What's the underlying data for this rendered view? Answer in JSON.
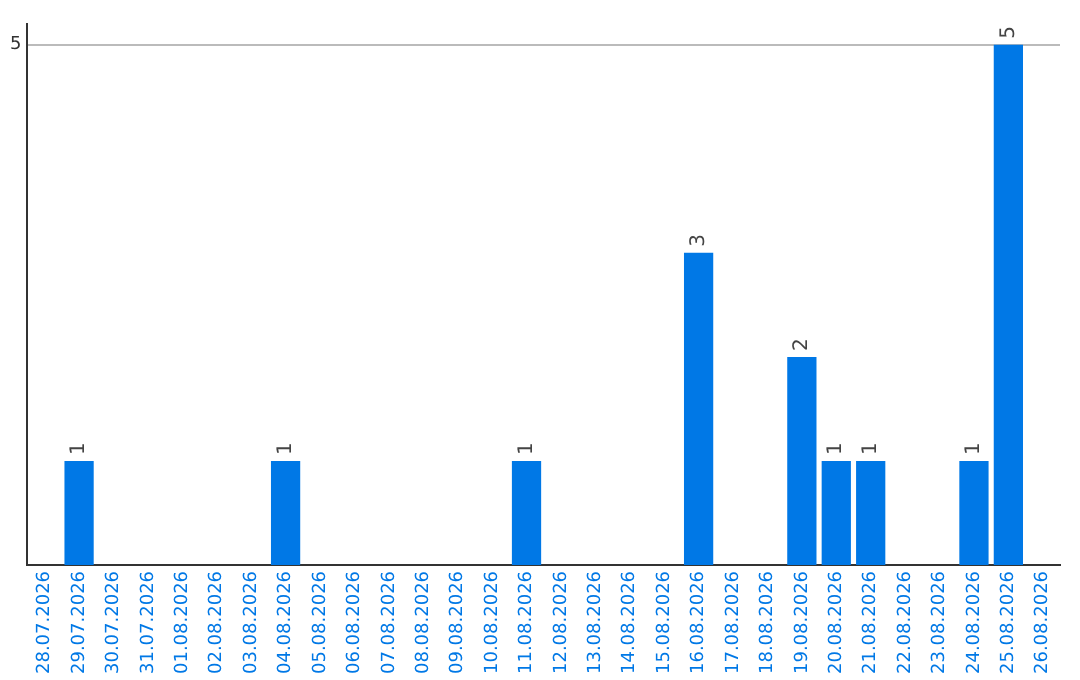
{
  "chart_data": {
    "type": "bar",
    "categories": [
      "28.07.2026",
      "29.07.2026",
      "30.07.2026",
      "31.07.2026",
      "01.08.2026",
      "02.08.2026",
      "03.08.2026",
      "04.08.2026",
      "05.08.2026",
      "06.08.2026",
      "07.08.2026",
      "08.08.2026",
      "09.08.2026",
      "10.08.2026",
      "11.08.2026",
      "12.08.2026",
      "13.08.2026",
      "14.08.2026",
      "15.08.2026",
      "16.08.2026",
      "17.08.2026",
      "18.08.2026",
      "19.08.2026",
      "20.08.2026",
      "21.08.2026",
      "22.08.2026",
      "23.08.2026",
      "24.08.2026",
      "25.08.2026",
      "26.08.2026"
    ],
    "values": [
      0,
      1,
      0,
      0,
      0,
      0,
      0,
      1,
      0,
      0,
      0,
      0,
      0,
      0,
      1,
      0,
      0,
      0,
      0,
      3,
      0,
      0,
      2,
      1,
      1,
      0,
      0,
      1,
      5,
      0
    ],
    "value_labels": [
      null,
      "1",
      null,
      null,
      null,
      null,
      null,
      "1",
      null,
      null,
      null,
      null,
      null,
      null,
      "1",
      null,
      null,
      null,
      null,
      "3",
      null,
      null,
      "2",
      "1",
      "1",
      null,
      null,
      "1",
      "5",
      null
    ],
    "color": "#0078e6",
    "ylim": [
      0,
      5.2
    ],
    "yticks": [
      5
    ],
    "grid": "y"
  }
}
